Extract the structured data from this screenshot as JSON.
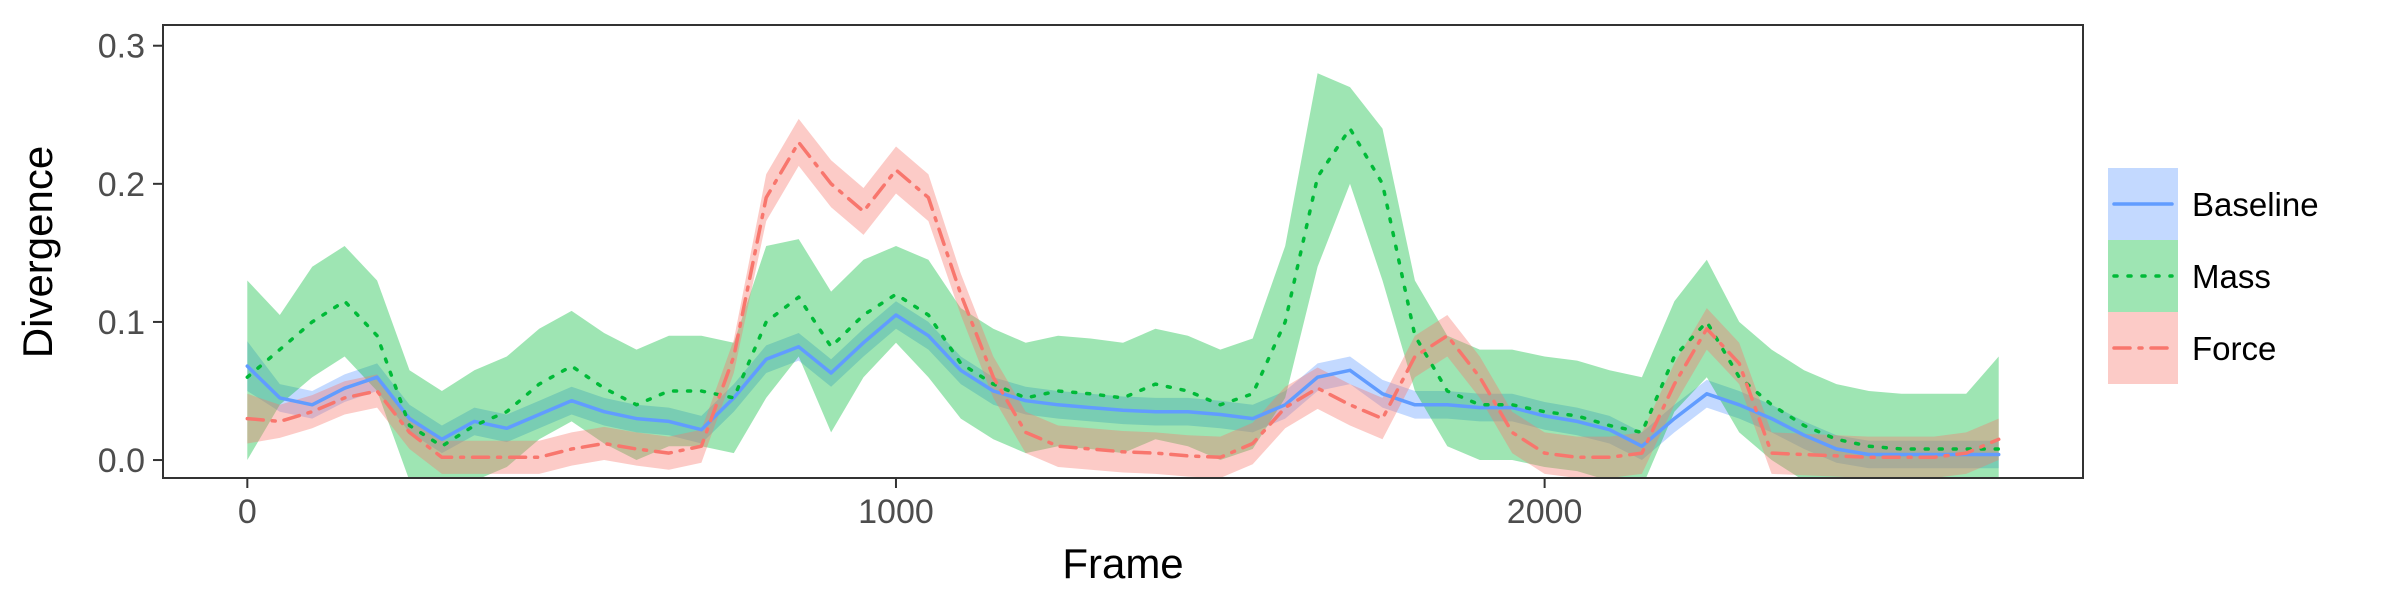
{
  "chart_data": {
    "type": "line",
    "xlabel": "Frame",
    "ylabel": "Divergence",
    "xlim": [
      -130,
      2830
    ],
    "ylim": [
      -0.013,
      0.315
    ],
    "x_ticks": [
      0,
      1000,
      2000
    ],
    "x_tick_labels": [
      "0",
      "1000",
      "2000"
    ],
    "y_ticks": [
      0.0,
      0.1,
      0.2,
      0.3
    ],
    "y_tick_labels": [
      "0.0",
      "0.1",
      "0.2",
      "0.3"
    ],
    "grid": false,
    "legend_position": "right",
    "series": [
      {
        "name": "Baseline",
        "color": "#619CFF",
        "dash": "solid",
        "x": [
          0,
          50,
          100,
          150,
          200,
          250,
          300,
          350,
          400,
          450,
          500,
          550,
          600,
          650,
          700,
          750,
          800,
          850,
          900,
          950,
          1000,
          1050,
          1100,
          1150,
          1200,
          1250,
          1300,
          1350,
          1400,
          1450,
          1500,
          1550,
          1600,
          1650,
          1700,
          1750,
          1800,
          1850,
          1900,
          1950,
          2000,
          2050,
          2100,
          2150,
          2200,
          2250,
          2300,
          2350,
          2400,
          2450,
          2500,
          2550,
          2600,
          2650,
          2700
        ],
        "y": [
          0.068,
          0.045,
          0.04,
          0.052,
          0.06,
          0.03,
          0.015,
          0.028,
          0.023,
          0.033,
          0.043,
          0.035,
          0.03,
          0.028,
          0.022,
          0.045,
          0.073,
          0.082,
          0.063,
          0.085,
          0.105,
          0.09,
          0.065,
          0.05,
          0.043,
          0.04,
          0.038,
          0.036,
          0.035,
          0.035,
          0.033,
          0.03,
          0.04,
          0.06,
          0.065,
          0.048,
          0.04,
          0.04,
          0.038,
          0.038,
          0.032,
          0.028,
          0.022,
          0.01,
          0.03,
          0.048,
          0.04,
          0.03,
          0.018,
          0.008,
          0.004,
          0.004,
          0.004,
          0.004,
          0.004
        ],
        "lower": [
          0.05,
          0.035,
          0.03,
          0.042,
          0.05,
          0.02,
          0.005,
          0.018,
          0.013,
          0.023,
          0.033,
          0.025,
          0.02,
          0.018,
          0.012,
          0.035,
          0.063,
          0.072,
          0.053,
          0.075,
          0.095,
          0.08,
          0.055,
          0.04,
          0.033,
          0.03,
          0.028,
          0.026,
          0.025,
          0.025,
          0.023,
          0.02,
          0.03,
          0.05,
          0.055,
          0.038,
          0.03,
          0.03,
          0.028,
          0.028,
          0.022,
          0.018,
          0.012,
          0.0,
          0.02,
          0.038,
          0.03,
          0.02,
          0.008,
          -0.002,
          -0.006,
          -0.006,
          -0.006,
          -0.006,
          -0.006
        ],
        "upper": [
          0.086,
          0.055,
          0.05,
          0.062,
          0.07,
          0.04,
          0.025,
          0.038,
          0.033,
          0.043,
          0.053,
          0.045,
          0.04,
          0.038,
          0.032,
          0.055,
          0.083,
          0.092,
          0.073,
          0.095,
          0.115,
          0.1,
          0.075,
          0.06,
          0.053,
          0.05,
          0.048,
          0.046,
          0.045,
          0.045,
          0.043,
          0.04,
          0.05,
          0.07,
          0.075,
          0.058,
          0.05,
          0.05,
          0.048,
          0.048,
          0.042,
          0.038,
          0.032,
          0.02,
          0.04,
          0.058,
          0.05,
          0.04,
          0.028,
          0.018,
          0.014,
          0.014,
          0.014,
          0.014,
          0.014
        ]
      },
      {
        "name": "Mass",
        "color": "#00BA38",
        "dash": "dotted",
        "x": [
          0,
          50,
          100,
          150,
          200,
          250,
          300,
          350,
          400,
          450,
          500,
          550,
          600,
          650,
          700,
          750,
          800,
          850,
          900,
          950,
          1000,
          1050,
          1100,
          1150,
          1200,
          1250,
          1300,
          1350,
          1400,
          1450,
          1500,
          1550,
          1600,
          1650,
          1700,
          1750,
          1800,
          1850,
          1900,
          1950,
          2000,
          2050,
          2100,
          2150,
          2200,
          2250,
          2300,
          2350,
          2400,
          2450,
          2500,
          2550,
          2600,
          2650,
          2700
        ],
        "y": [
          0.06,
          0.08,
          0.1,
          0.115,
          0.09,
          0.025,
          0.01,
          0.025,
          0.035,
          0.055,
          0.068,
          0.052,
          0.04,
          0.05,
          0.05,
          0.045,
          0.1,
          0.118,
          0.082,
          0.105,
          0.12,
          0.105,
          0.07,
          0.055,
          0.045,
          0.05,
          0.048,
          0.045,
          0.055,
          0.05,
          0.04,
          0.048,
          0.1,
          0.205,
          0.24,
          0.2,
          0.09,
          0.05,
          0.04,
          0.04,
          0.035,
          0.032,
          0.025,
          0.02,
          0.075,
          0.1,
          0.06,
          0.04,
          0.025,
          0.015,
          0.01,
          0.008,
          0.008,
          0.008,
          0.008
        ],
        "lower": [
          0.0,
          0.04,
          0.06,
          0.075,
          0.05,
          -0.015,
          -0.03,
          -0.015,
          -0.005,
          0.015,
          0.028,
          0.012,
          0.0,
          0.01,
          0.01,
          0.005,
          0.045,
          0.075,
          0.02,
          0.06,
          0.085,
          0.06,
          0.03,
          0.015,
          0.005,
          0.01,
          0.008,
          0.005,
          0.015,
          0.01,
          0.0,
          0.008,
          0.045,
          0.14,
          0.2,
          0.13,
          0.05,
          0.01,
          0.0,
          0.0,
          -0.005,
          -0.008,
          -0.015,
          -0.02,
          0.035,
          0.06,
          0.02,
          0.0,
          -0.015,
          -0.025,
          -0.03,
          -0.032,
          -0.032,
          -0.032,
          -0.032
        ],
        "upper": [
          0.13,
          0.105,
          0.14,
          0.155,
          0.13,
          0.065,
          0.05,
          0.065,
          0.075,
          0.095,
          0.108,
          0.092,
          0.08,
          0.09,
          0.09,
          0.085,
          0.155,
          0.16,
          0.122,
          0.145,
          0.155,
          0.145,
          0.11,
          0.095,
          0.085,
          0.09,
          0.088,
          0.085,
          0.095,
          0.09,
          0.08,
          0.088,
          0.155,
          0.28,
          0.27,
          0.24,
          0.13,
          0.09,
          0.08,
          0.08,
          0.075,
          0.072,
          0.065,
          0.06,
          0.115,
          0.145,
          0.1,
          0.08,
          0.065,
          0.055,
          0.05,
          0.048,
          0.048,
          0.048,
          0.075
        ]
      },
      {
        "name": "Force",
        "color": "#F8766D",
        "dash": "dashdot",
        "x": [
          0,
          50,
          100,
          150,
          200,
          250,
          300,
          350,
          400,
          450,
          500,
          550,
          600,
          650,
          700,
          750,
          800,
          850,
          900,
          950,
          1000,
          1050,
          1100,
          1150,
          1200,
          1250,
          1300,
          1350,
          1400,
          1450,
          1500,
          1550,
          1600,
          1650,
          1700,
          1750,
          1800,
          1850,
          1900,
          1950,
          2000,
          2050,
          2100,
          2150,
          2200,
          2250,
          2300,
          2350,
          2400,
          2450,
          2500,
          2550,
          2600,
          2650,
          2700
        ],
        "y": [
          0.03,
          0.028,
          0.035,
          0.045,
          0.05,
          0.02,
          0.002,
          0.002,
          0.002,
          0.002,
          0.008,
          0.012,
          0.008,
          0.005,
          0.01,
          0.075,
          0.19,
          0.23,
          0.2,
          0.18,
          0.21,
          0.19,
          0.12,
          0.06,
          0.02,
          0.01,
          0.008,
          0.006,
          0.005,
          0.003,
          0.002,
          0.012,
          0.038,
          0.052,
          0.04,
          0.03,
          0.075,
          0.09,
          0.06,
          0.02,
          0.005,
          0.002,
          0.002,
          0.005,
          0.055,
          0.095,
          0.07,
          0.005,
          0.004,
          0.003,
          0.002,
          0.002,
          0.002,
          0.005,
          0.015
        ],
        "lower": [
          0.012,
          0.016,
          0.023,
          0.033,
          0.038,
          0.008,
          -0.01,
          -0.01,
          -0.01,
          -0.01,
          -0.004,
          0.0,
          -0.004,
          -0.007,
          -0.002,
          0.063,
          0.173,
          0.213,
          0.183,
          0.163,
          0.193,
          0.173,
          0.105,
          0.045,
          0.005,
          -0.005,
          -0.007,
          -0.009,
          -0.01,
          -0.012,
          -0.013,
          -0.003,
          0.023,
          0.037,
          0.025,
          0.015,
          0.06,
          0.075,
          0.045,
          0.005,
          -0.01,
          -0.013,
          -0.013,
          -0.01,
          0.04,
          0.08,
          0.055,
          -0.01,
          -0.011,
          -0.012,
          -0.013,
          -0.013,
          -0.013,
          -0.01,
          0.0
        ],
        "upper": [
          0.048,
          0.04,
          0.047,
          0.057,
          0.062,
          0.032,
          0.014,
          0.014,
          0.014,
          0.014,
          0.02,
          0.024,
          0.02,
          0.017,
          0.022,
          0.087,
          0.207,
          0.247,
          0.217,
          0.197,
          0.227,
          0.207,
          0.135,
          0.075,
          0.035,
          0.025,
          0.023,
          0.021,
          0.02,
          0.018,
          0.017,
          0.027,
          0.053,
          0.067,
          0.055,
          0.045,
          0.09,
          0.105,
          0.075,
          0.035,
          0.02,
          0.017,
          0.017,
          0.02,
          0.07,
          0.11,
          0.085,
          0.02,
          0.019,
          0.018,
          0.017,
          0.017,
          0.017,
          0.02,
          0.03
        ]
      }
    ]
  }
}
